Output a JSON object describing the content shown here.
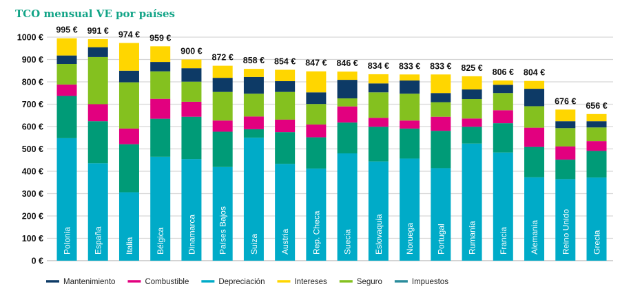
{
  "chart_data": {
    "type": "bar",
    "stacked": true,
    "title": "TCO mensual VE por países",
    "xlabel": "",
    "ylabel": "",
    "ylim": [
      0,
      1000
    ],
    "yticks": [
      "0 €",
      "100 €",
      "200 €",
      "300 €",
      "400 €",
      "500 €",
      "600 €",
      "700 €",
      "800 €",
      "900 €",
      "1000 €"
    ],
    "grid": true,
    "legend": "bottom",
    "categories": [
      "Polonia",
      "España",
      "Italia",
      "Bélgica",
      "Dinamarca",
      "Países Bajos",
      "Suiza",
      "Austria",
      "Rep. Checa",
      "Suecia",
      "Eslovaquia",
      "Noruega",
      "Portugal",
      "Rumanía",
      "Francia",
      "Alemania",
      "Reino Unido",
      "Grecia"
    ],
    "totals": [
      "995 €",
      "991 €",
      "974 €",
      "959 €",
      "900 €",
      "872 €",
      "858 €",
      "854 €",
      "847 €",
      "846 €",
      "834 €",
      "833 €",
      "833 €",
      "825 €",
      "806 €",
      "804 €",
      "676 €",
      "656 €"
    ],
    "series": [
      {
        "name": "Depreciación",
        "color": "#00ABC8",
        "values": [
          548,
          436,
          306,
          465,
          455,
          419,
          550,
          433,
          412,
          480,
          444,
          457,
          414,
          524,
          484,
          373,
          365,
          372
        ]
      },
      {
        "name": "Impuestos",
        "color": "#009B77",
        "legend_color": "#2A8C9C",
        "values": [
          189,
          188,
          215,
          170,
          189,
          158,
          38,
          142,
          140,
          138,
          155,
          134,
          167,
          75,
          131,
          136,
          87,
          119
        ]
      },
      {
        "name": "Combustible",
        "color": "#E2007F",
        "values": [
          51,
          76,
          70,
          89,
          67,
          50,
          57,
          56,
          57,
          72,
          40,
          36,
          63,
          37,
          58,
          86,
          59,
          44
        ]
      },
      {
        "name": "Seguro",
        "color": "#84C11F",
        "values": [
          92,
          211,
          207,
          123,
          90,
          128,
          102,
          124,
          92,
          36,
          114,
          120,
          65,
          87,
          77,
          96,
          82,
          61
        ]
      },
      {
        "name": "Mantenimiento",
        "color": "#0D3A66",
        "values": [
          38,
          44,
          52,
          42,
          60,
          63,
          75,
          48,
          52,
          83,
          40,
          59,
          41,
          43,
          37,
          78,
          31,
          28
        ]
      },
      {
        "name": "Intereses",
        "color": "#FFD600",
        "values": [
          77,
          36,
          124,
          70,
          39,
          54,
          36,
          51,
          94,
          37,
          41,
          27,
          83,
          59,
          19,
          35,
          52,
          32
        ]
      }
    ],
    "legend_order": [
      "Mantenimiento",
      "Combustible",
      "Depreciación",
      "Intereses",
      "Seguro",
      "Impuestos"
    ]
  }
}
